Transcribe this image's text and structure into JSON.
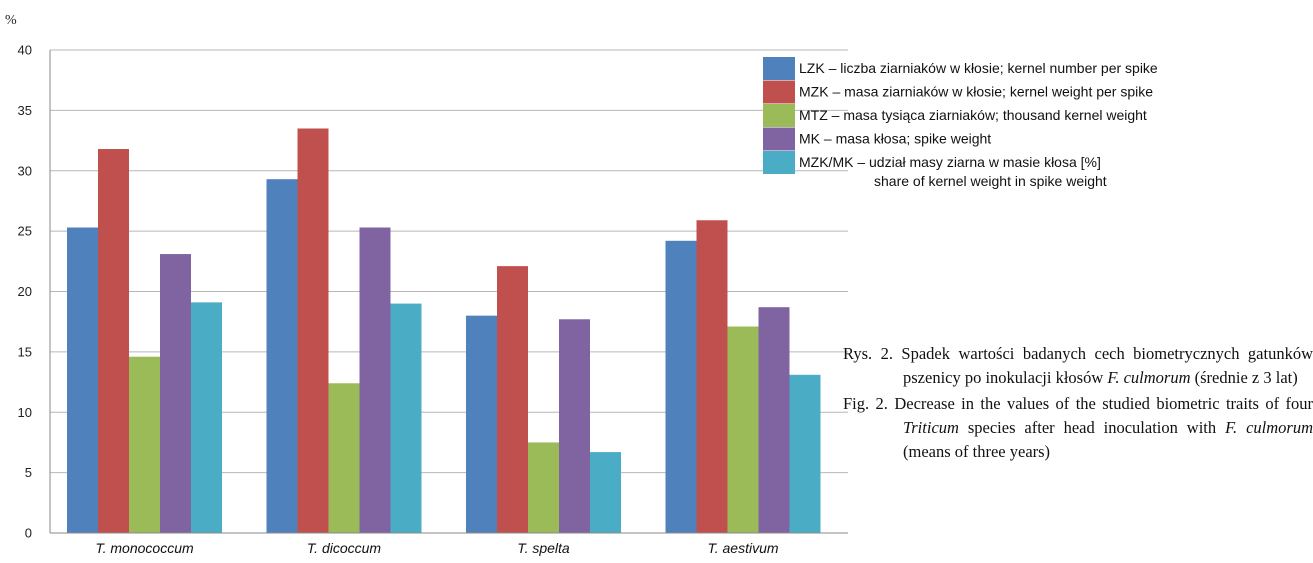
{
  "chart_data": {
    "type": "bar",
    "ylabel": "%",
    "ylim": [
      0,
      40
    ],
    "yticks": [
      0,
      5,
      10,
      15,
      20,
      25,
      30,
      35,
      40
    ],
    "grid": true,
    "legend_position": "top-right",
    "categories": [
      "T. monococcum",
      "T. dicoccum",
      "T. spelta",
      "T. aestivum"
    ],
    "series": [
      {
        "name": "LZK – liczba ziarniaków w kłosie; kernel number per spike",
        "color": "#4F81BD",
        "values": [
          25.3,
          29.3,
          18.0,
          24.2
        ]
      },
      {
        "name": "MZK – masa ziarniaków w kłosie; kernel weight per spike",
        "color": "#C0504D",
        "values": [
          31.8,
          33.5,
          22.1,
          25.9
        ]
      },
      {
        "name": "MTZ – masa tysiąca ziarniaków; thousand kernel weight",
        "color": "#9BBB59",
        "values": [
          14.6,
          12.4,
          7.5,
          17.1
        ]
      },
      {
        "name": "MK – masa kłosa; spike weight",
        "color": "#8064A2",
        "values": [
          23.1,
          25.3,
          17.7,
          18.7
        ]
      },
      {
        "name": "MZK/MK – udział masy ziarna w masie kłosa [%]",
        "name_line2": "share of kernel weight in spike weight",
        "color": "#4BACC6",
        "values": [
          19.1,
          19.0,
          6.7,
          13.1
        ]
      }
    ]
  },
  "caption": {
    "pl_prefix": "Rys. 2. Spadek wartości badanych cech biometrycznych gatunków pszenicy po inokulacji kłosów ",
    "pl_species": "F. culmorum",
    "pl_suffix": " (średnie z 3 lat)",
    "en_prefix": "Fig. 2. Decrease in the values of the studied biometric traits of four ",
    "en_genus": "Triticum",
    "en_middle": " species after head inoculation with ",
    "en_species": "F. culmorum",
    "en_suffix": " (means of three years)"
  }
}
